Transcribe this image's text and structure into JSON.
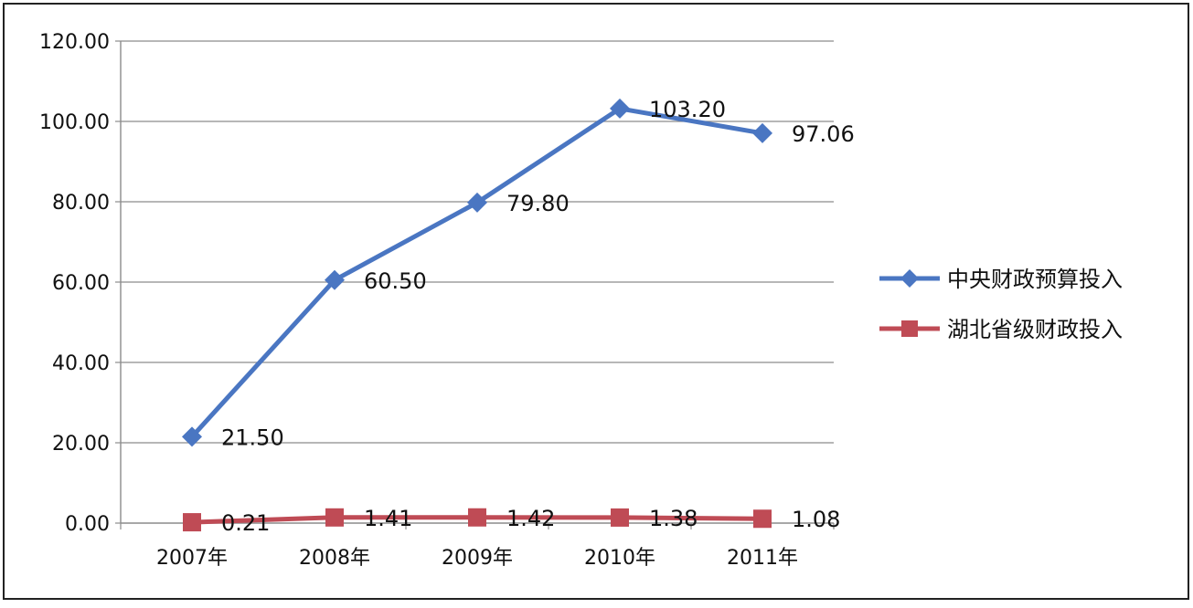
{
  "chart_data": {
    "type": "line",
    "categories": [
      "2007年",
      "2008年",
      "2009年",
      "2010年",
      "2011年"
    ],
    "series": [
      {
        "name": "中央财政预算投入",
        "values": [
          21.5,
          60.5,
          79.8,
          103.2,
          97.06
        ],
        "labels": [
          "21.50",
          "60.50",
          "79.80",
          "103.20",
          "97.06"
        ],
        "color": "#4a76c2",
        "marker": "diamond"
      },
      {
        "name": "湖北省级财政投入",
        "values": [
          0.21,
          1.41,
          1.42,
          1.38,
          1.08
        ],
        "labels": [
          "0.21",
          "1.41",
          "1.42",
          "1.38",
          "1.08"
        ],
        "color": "#bf4b55",
        "marker": "square"
      }
    ],
    "title": "",
    "xlabel": "",
    "ylabel": "",
    "ylim": [
      0,
      120
    ],
    "yticks": [
      "0.00",
      "20.00",
      "40.00",
      "60.00",
      "80.00",
      "100.00",
      "120.00"
    ],
    "grid": true,
    "legend_position": "right"
  }
}
